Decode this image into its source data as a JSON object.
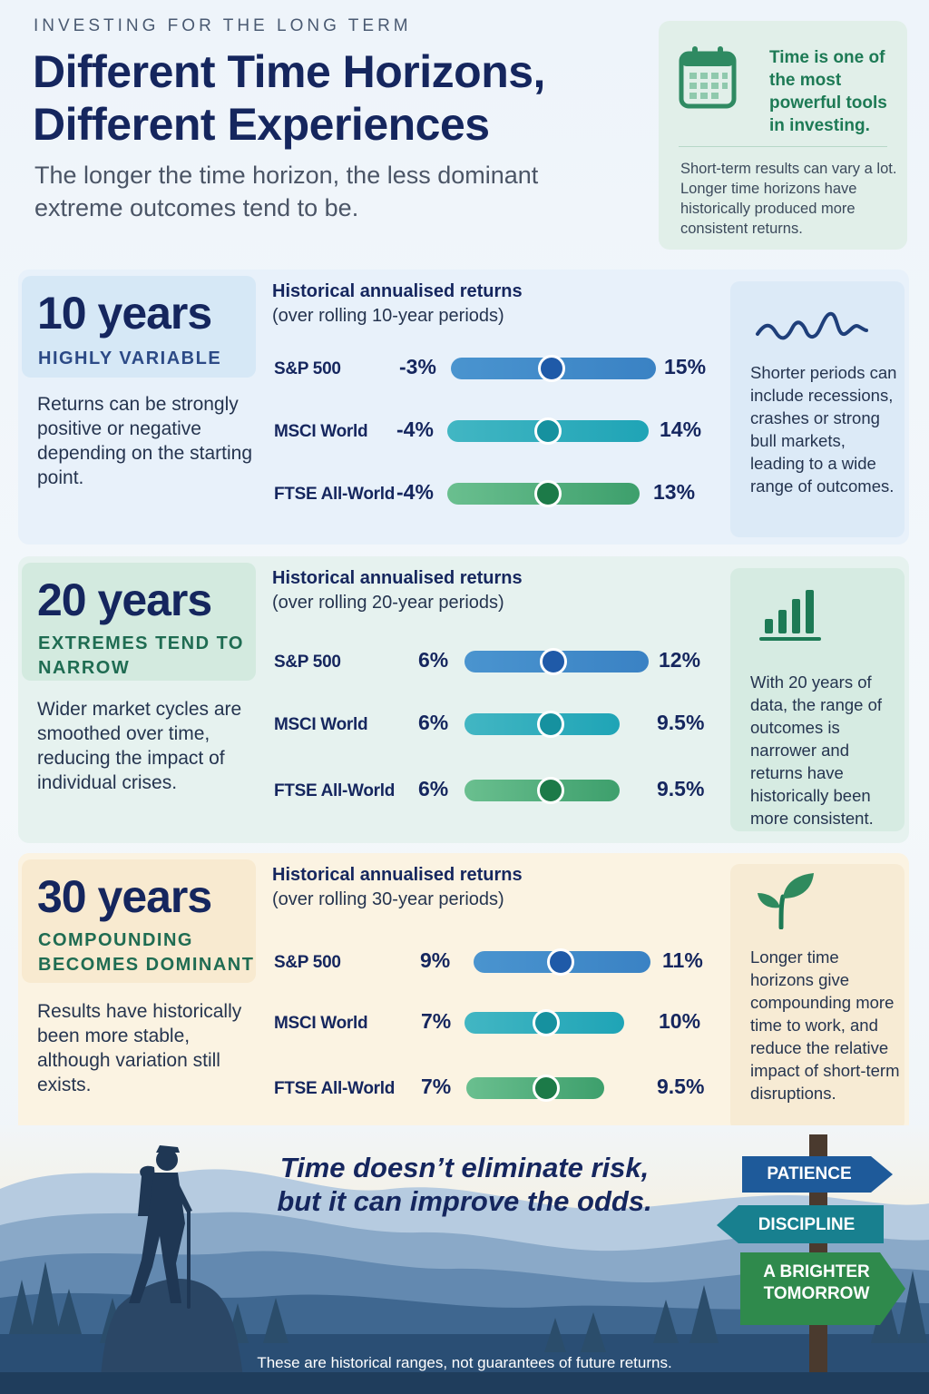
{
  "header": {
    "eyebrow": "INVESTING FOR THE LONG TERM",
    "title_line1": "Different Time Horizons,",
    "title_line2": "Different Experiences",
    "subtitle": "The longer the time horizon, the less dominant extreme outcomes tend to be."
  },
  "callout": {
    "icon": "calendar-icon",
    "title": "Time is one of the most powerful tools in investing.",
    "body": "Short-term results can vary a lot. Longer time horizons have historically produced more consistent returns."
  },
  "sections": [
    {
      "years": "10 years",
      "label": "HIGHLY VARIABLE",
      "description": "Returns can be strongly positive or negative depending on the starting point.",
      "chart_title": "Historical annualised returns",
      "chart_sub": "(over rolling 10-year periods)",
      "rows": [
        {
          "index": "S&P 500",
          "low": "-3%",
          "high": "15%"
        },
        {
          "index": "MSCI World",
          "low": "-4%",
          "high": "14%"
        },
        {
          "index": "FTSE All-World",
          "low": "-4%",
          "high": "13%"
        }
      ],
      "side_icon": "wave-line-icon",
      "side_text": "Shorter periods can include recessions, crashes or strong bull markets, leading to a wide range of outcomes."
    },
    {
      "years": "20 years",
      "label": "EXTREMES TEND TO NARROW",
      "description": "Wider market cycles are smoothed over time, reducing the impact of individual crises.",
      "chart_title": "Historical annualised returns",
      "chart_sub": "(over rolling 20-year periods)",
      "rows": [
        {
          "index": "S&P 500",
          "low": "6%",
          "high": "12%"
        },
        {
          "index": "MSCI World",
          "low": "6%",
          "high": "9.5%"
        },
        {
          "index": "FTSE All-World",
          "low": "6%",
          "high": "9.5%"
        }
      ],
      "side_icon": "bar-chart-icon",
      "side_text": "With 20 years of data, the range of outcomes is narrower and returns have historically been more consistent."
    },
    {
      "years": "30 years",
      "label": "COMPOUNDING BECOMES DOMINANT",
      "description": "Results have historically been more stable, although variation still exists.",
      "chart_title": "Historical annualised returns",
      "chart_sub": "(over rolling 30-year periods)",
      "rows": [
        {
          "index": "S&P 500",
          "low": "9%",
          "high": "11%"
        },
        {
          "index": "MSCI World",
          "low": "7%",
          "high": "10%"
        },
        {
          "index": "FTSE All-World",
          "low": "7%",
          "high": "9.5%"
        }
      ],
      "side_icon": "sprout-icon",
      "side_text": "Longer time horizons give compounding more time to work, and reduce the relative impact of short-term disruptions."
    }
  ],
  "footer": {
    "tagline_line1": "Time doesn’t eliminate risk,",
    "tagline_line2": "but it can improve the odds.",
    "signs": [
      "PATIENCE",
      "DISCIPLINE",
      "A BRIGHTER TOMORROW"
    ],
    "disclaimer": "These are historical ranges, not guarantees of future returns."
  },
  "colors": {
    "navy": "#15265e",
    "blue_bar": "#3a82c4",
    "teal_bar": "#1fa4b6",
    "green_bar": "#3d9f6c",
    "green_accent": "#1d7a55"
  }
}
